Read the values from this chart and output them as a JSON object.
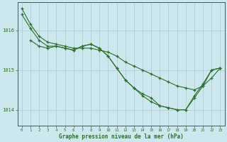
{
  "background_color": "#cce8ee",
  "grid_color": "#aacccc",
  "line_color": "#2d6e2d",
  "marker_color": "#2d6e2d",
  "xlabel": "Graphe pression niveau de la mer (hPa)",
  "xlim": [
    -0.5,
    23.5
  ],
  "ylim": [
    1013.6,
    1016.7
  ],
  "yticks": [
    1014,
    1015,
    1016
  ],
  "xticks": [
    0,
    1,
    2,
    3,
    4,
    5,
    6,
    7,
    8,
    9,
    10,
    11,
    12,
    13,
    14,
    15,
    16,
    17,
    18,
    19,
    20,
    21,
    22,
    23
  ],
  "series": [
    {
      "x": [
        0,
        1,
        2,
        3,
        4,
        5,
        6,
        7,
        8,
        9,
        10,
        11,
        12,
        13,
        14,
        15,
        16,
        17,
        18,
        19,
        20,
        21,
        22,
        23
      ],
      "y": [
        1016.55,
        1016.15,
        1015.85,
        1015.7,
        1015.65,
        1015.6,
        1015.55,
        1015.55,
        1015.55,
        1015.5,
        1015.45,
        1015.35,
        1015.2,
        1015.1,
        1015.0,
        1014.9,
        1014.8,
        1014.7,
        1014.6,
        1014.55,
        1014.5,
        1014.6,
        1014.8,
        1015.05
      ]
    },
    {
      "x": [
        0,
        1,
        2,
        3,
        4,
        5,
        6,
        7,
        8,
        9,
        10,
        11,
        12,
        13,
        14,
        15,
        16,
        17,
        18,
        19,
        20,
        21,
        22,
        23
      ],
      "y": [
        1016.4,
        1016.05,
        1015.75,
        1015.6,
        1015.6,
        1015.55,
        1015.5,
        1015.6,
        1015.65,
        1015.55,
        1015.35,
        1015.05,
        1014.75,
        1014.55,
        1014.4,
        1014.3,
        1014.1,
        1014.05,
        1014.0,
        1014.0,
        1014.3,
        1014.6,
        1015.0,
        1015.05
      ]
    },
    {
      "x": [
        1,
        2,
        3,
        4,
        5,
        6,
        7,
        8,
        9,
        10,
        11,
        12,
        13,
        14,
        15,
        16,
        17,
        18,
        19,
        20,
        21,
        22,
        23
      ],
      "y": [
        1015.75,
        1015.6,
        1015.55,
        1015.6,
        1015.55,
        1015.5,
        1015.6,
        1015.65,
        1015.55,
        1015.35,
        1015.05,
        1014.75,
        1014.55,
        1014.35,
        1014.2,
        1014.1,
        1014.05,
        1014.0,
        1014.0,
        1014.35,
        1014.65,
        1015.0,
        1015.05
      ]
    }
  ]
}
